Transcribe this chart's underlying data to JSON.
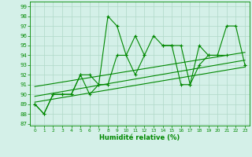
{
  "xlabel": "Humidité relative (%)",
  "bg_color": "#d4f0e8",
  "grid_color": "#b0d8c8",
  "line_color": "#008800",
  "xlim": [
    -0.5,
    23.5
  ],
  "ylim": [
    86.8,
    99.5
  ],
  "yticks": [
    87,
    88,
    89,
    90,
    91,
    92,
    93,
    94,
    95,
    96,
    97,
    98,
    99
  ],
  "xticks": [
    0,
    1,
    2,
    3,
    4,
    5,
    6,
    7,
    8,
    9,
    10,
    11,
    12,
    13,
    14,
    15,
    16,
    17,
    18,
    19,
    20,
    21,
    22,
    23
  ],
  "series1": [
    89,
    88,
    90,
    90,
    90,
    92,
    92,
    91,
    98,
    97,
    94,
    96,
    94,
    96,
    95,
    95,
    95,
    91,
    95,
    94,
    94,
    97,
    97,
    93
  ],
  "series2_segments": [
    [
      [
        0,
        89
      ],
      [
        1,
        88
      ],
      [
        2,
        90
      ],
      [
        3,
        90
      ],
      [
        4,
        90
      ],
      [
        5,
        92
      ],
      [
        6,
        90
      ],
      [
        7,
        91
      ],
      [
        8,
        91
      ],
      [
        9,
        94
      ],
      [
        10,
        94
      ],
      [
        11,
        92
      ],
      [
        12,
        94
      ]
    ],
    [
      [
        14,
        95
      ],
      [
        15,
        95
      ],
      [
        16,
        91
      ],
      [
        17,
        91
      ],
      [
        18,
        93
      ],
      [
        19,
        94
      ],
      [
        20,
        94
      ],
      [
        21,
        94
      ]
    ],
    [
      [
        23,
        93
      ]
    ]
  ],
  "trend1_x": [
    0,
    23
  ],
  "trend1_y": [
    89.8,
    93.5
  ],
  "trend2_x": [
    0,
    23
  ],
  "trend2_y": [
    90.8,
    94.3
  ],
  "trend3_x": [
    0,
    23
  ],
  "trend3_y": [
    89.2,
    92.8
  ]
}
